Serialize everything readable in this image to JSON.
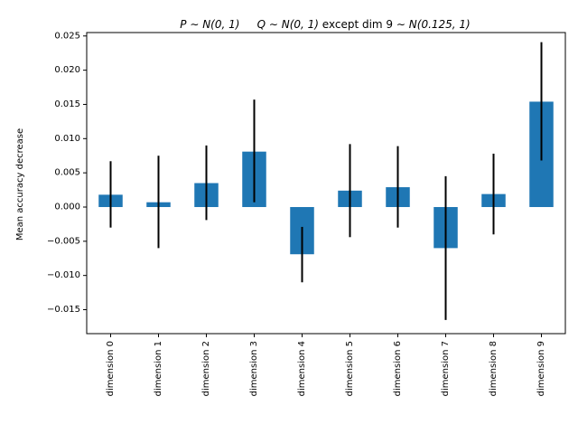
{
  "chart_data": {
    "type": "bar",
    "title": "P ~ N(0, 1)   Q ~ N(0, 1) except dim 9 ~ N(0.125, 1)",
    "title_parts": {
      "p_var": "P",
      "p_dist": "N(0, 1)",
      "q_var": "Q",
      "q_dist": "N(0, 1)",
      "except_text": "except dim 9",
      "dim9_dist": "N(0.125, 1)"
    },
    "xlabel": "",
    "ylabel": "Mean accuracy decrease",
    "categories": [
      "dimension 0",
      "dimension 1",
      "dimension 2",
      "dimension 3",
      "dimension 4",
      "dimension 5",
      "dimension 6",
      "dimension 7",
      "dimension 8",
      "dimension 9"
    ],
    "values": [
      0.0018,
      0.0007,
      0.0035,
      0.0081,
      -0.0069,
      0.0024,
      0.0029,
      -0.006,
      0.0019,
      0.0154
    ],
    "error_low": [
      -0.003,
      -0.006,
      -0.0019,
      0.0007,
      -0.011,
      -0.0044,
      -0.003,
      -0.0165,
      -0.004,
      0.0068
    ],
    "error_high": [
      0.0067,
      0.0075,
      0.009,
      0.0157,
      -0.0029,
      0.0092,
      0.0089,
      0.0045,
      0.0078,
      0.0241
    ],
    "ylim": [
      -0.0185,
      0.0255
    ],
    "yticks": [
      -0.015,
      -0.01,
      -0.005,
      0.0,
      0.005,
      0.01,
      0.015,
      0.02,
      0.025
    ],
    "ytick_labels": [
      "−0.015",
      "−0.010",
      "−0.005",
      "0.000",
      "0.005",
      "0.010",
      "0.015",
      "0.020",
      "0.025"
    ],
    "bar_color": "#1f77b4",
    "error_color": "#000000",
    "grid": false,
    "legend": false
  }
}
